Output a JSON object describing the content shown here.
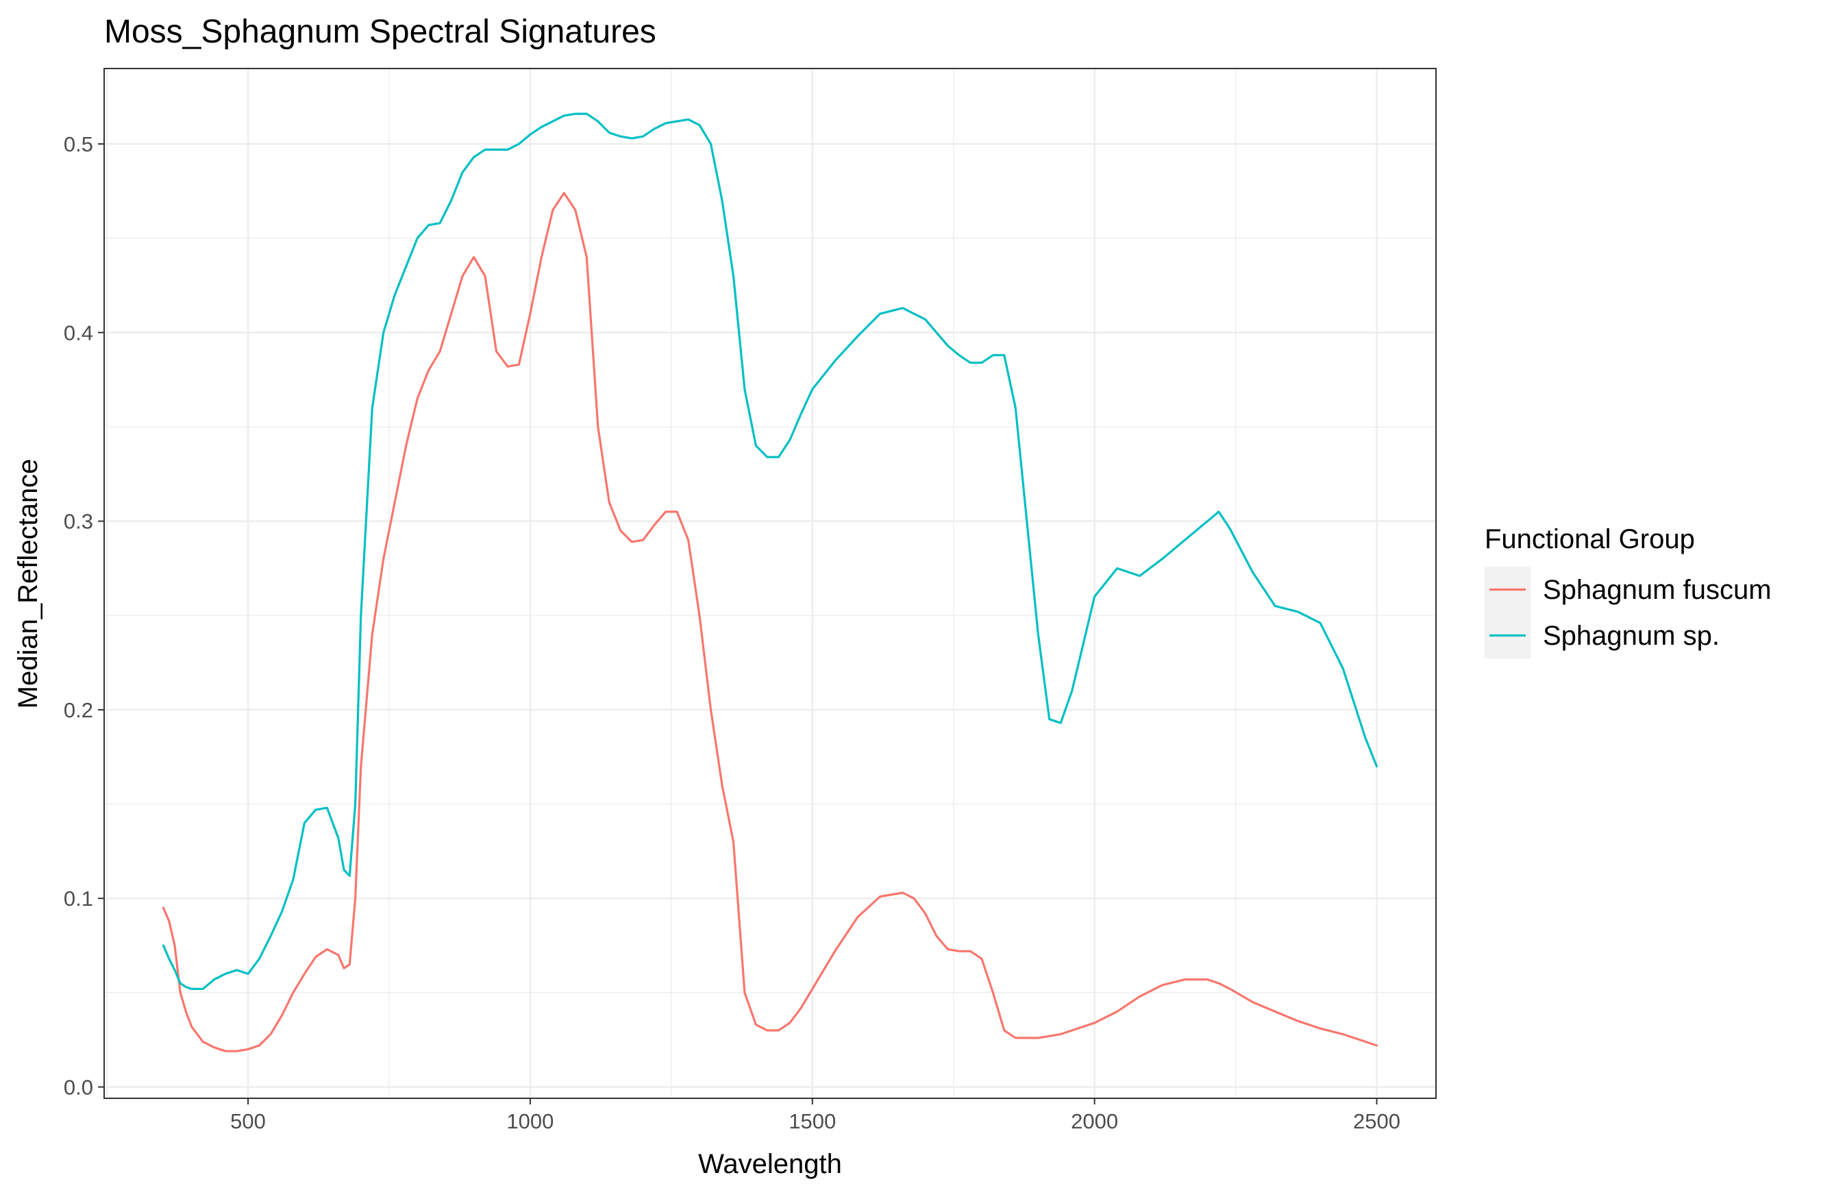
{
  "chart_data": {
    "type": "line",
    "title": "Moss_Sphagnum Spectral Signatures",
    "xlabel": "Wavelength",
    "ylabel": "Median_Reflectance",
    "xlim": [
      245,
      2605
    ],
    "ylim": [
      -0.006,
      0.54
    ],
    "x_ticks": [
      500,
      1000,
      1500,
      2000,
      2500
    ],
    "y_ticks": [
      0.0,
      0.1,
      0.2,
      0.3,
      0.4,
      0.5
    ],
    "x_tick_labels": [
      "500",
      "1000",
      "1500",
      "2000",
      "2500"
    ],
    "y_tick_labels": [
      "0.0",
      "0.1",
      "0.2",
      "0.3",
      "0.4",
      "0.5"
    ],
    "grid": true,
    "legend": {
      "title": "Functional Group",
      "position": "right"
    },
    "series": [
      {
        "name": "Sphagnum fuscum",
        "color": "#F8766D",
        "x": [
          350,
          360,
          370,
          380,
          390,
          400,
          420,
          440,
          460,
          480,
          500,
          520,
          540,
          560,
          580,
          600,
          620,
          640,
          660,
          670,
          680,
          690,
          700,
          720,
          740,
          760,
          780,
          800,
          820,
          840,
          860,
          880,
          900,
          920,
          940,
          960,
          980,
          1000,
          1020,
          1040,
          1060,
          1080,
          1100,
          1120,
          1140,
          1160,
          1180,
          1200,
          1220,
          1240,
          1260,
          1280,
          1300,
          1320,
          1340,
          1360,
          1380,
          1400,
          1420,
          1440,
          1460,
          1480,
          1500,
          1540,
          1580,
          1620,
          1660,
          1680,
          1700,
          1720,
          1740,
          1760,
          1780,
          1800,
          1820,
          1840,
          1860,
          1880,
          1900,
          1920,
          1940,
          1960,
          1980,
          2000,
          2040,
          2080,
          2120,
          2160,
          2200,
          2220,
          2240,
          2280,
          2320,
          2360,
          2400,
          2440,
          2480,
          2500
        ],
        "values": [
          0.095,
          0.088,
          0.075,
          0.05,
          0.04,
          0.032,
          0.024,
          0.021,
          0.019,
          0.019,
          0.02,
          0.022,
          0.028,
          0.038,
          0.05,
          0.06,
          0.069,
          0.073,
          0.07,
          0.063,
          0.065,
          0.1,
          0.17,
          0.24,
          0.28,
          0.31,
          0.34,
          0.365,
          0.38,
          0.39,
          0.41,
          0.43,
          0.44,
          0.43,
          0.39,
          0.382,
          0.383,
          0.41,
          0.44,
          0.465,
          0.474,
          0.465,
          0.44,
          0.35,
          0.31,
          0.295,
          0.289,
          0.29,
          0.298,
          0.305,
          0.305,
          0.29,
          0.25,
          0.2,
          0.16,
          0.13,
          0.05,
          0.033,
          0.03,
          0.03,
          0.034,
          0.042,
          0.052,
          0.072,
          0.09,
          0.101,
          0.103,
          0.1,
          0.092,
          0.08,
          0.073,
          0.072,
          0.072,
          0.068,
          0.05,
          0.03,
          0.026,
          0.026,
          0.026,
          0.027,
          0.028,
          0.03,
          0.032,
          0.034,
          0.04,
          0.048,
          0.054,
          0.057,
          0.057,
          0.055,
          0.052,
          0.045,
          0.04,
          0.035,
          0.031,
          0.028,
          0.024,
          0.022
        ]
      },
      {
        "name": "Sphagnum sp.",
        "color": "#00BFC4",
        "x": [
          350,
          360,
          370,
          380,
          390,
          400,
          420,
          440,
          460,
          480,
          500,
          520,
          540,
          560,
          580,
          600,
          620,
          640,
          660,
          670,
          680,
          690,
          700,
          720,
          740,
          760,
          780,
          800,
          820,
          840,
          860,
          880,
          900,
          920,
          940,
          960,
          980,
          1000,
          1020,
          1040,
          1060,
          1080,
          1100,
          1120,
          1140,
          1160,
          1180,
          1200,
          1220,
          1240,
          1260,
          1280,
          1300,
          1320,
          1340,
          1360,
          1380,
          1400,
          1420,
          1440,
          1460,
          1480,
          1500,
          1540,
          1580,
          1620,
          1660,
          1680,
          1700,
          1720,
          1740,
          1760,
          1780,
          1800,
          1820,
          1840,
          1860,
          1880,
          1900,
          1920,
          1940,
          1960,
          1980,
          2000,
          2040,
          2080,
          2120,
          2160,
          2200,
          2220,
          2240,
          2280,
          2320,
          2360,
          2400,
          2440,
          2480,
          2500
        ],
        "values": [
          0.075,
          0.068,
          0.062,
          0.055,
          0.053,
          0.052,
          0.052,
          0.057,
          0.06,
          0.062,
          0.06,
          0.068,
          0.08,
          0.093,
          0.11,
          0.14,
          0.147,
          0.148,
          0.132,
          0.115,
          0.112,
          0.15,
          0.25,
          0.36,
          0.4,
          0.42,
          0.435,
          0.45,
          0.457,
          0.458,
          0.47,
          0.485,
          0.493,
          0.497,
          0.497,
          0.497,
          0.5,
          0.505,
          0.509,
          0.512,
          0.515,
          0.516,
          0.516,
          0.512,
          0.506,
          0.504,
          0.503,
          0.504,
          0.508,
          0.511,
          0.512,
          0.513,
          0.51,
          0.5,
          0.47,
          0.43,
          0.37,
          0.34,
          0.334,
          0.334,
          0.343,
          0.357,
          0.37,
          0.385,
          0.398,
          0.41,
          0.413,
          0.41,
          0.407,
          0.4,
          0.393,
          0.388,
          0.384,
          0.384,
          0.388,
          0.388,
          0.36,
          0.3,
          0.24,
          0.195,
          0.193,
          0.21,
          0.235,
          0.26,
          0.275,
          0.271,
          0.28,
          0.29,
          0.3,
          0.305,
          0.296,
          0.273,
          0.255,
          0.252,
          0.246,
          0.222,
          0.185,
          0.17
        ]
      }
    ]
  }
}
